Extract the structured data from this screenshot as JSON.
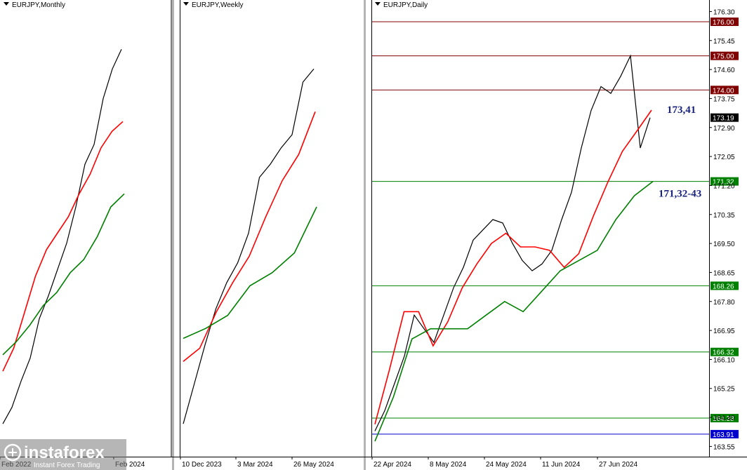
{
  "chart_data": [
    {
      "type": "line",
      "title": "EURJPY,Monthly",
      "xlabel": "",
      "ylabel": "",
      "x_tick_labels": [
        "Feb 2022",
        "Feb 2024"
      ],
      "ylim": [
        163.0,
        176.6
      ],
      "series": [
        {
          "color": "#000000",
          "values": [
            164.0,
            164.5,
            165.3,
            166.0,
            167.2,
            167.9,
            168.7,
            169.5,
            170.6,
            171.9,
            172.5,
            173.9,
            174.8,
            175.4
          ]
        },
        {
          "color": "#ff0000",
          "values": [
            165.6,
            166.3,
            167.4,
            168.5,
            169.3,
            169.8,
            170.3,
            171.0,
            171.6,
            172.4,
            172.9,
            173.2
          ]
        },
        {
          "color": "#008000",
          "values": [
            166.1,
            166.5,
            167.0,
            167.6,
            168.0,
            168.6,
            169.0,
            169.7,
            170.6,
            171.0
          ]
        }
      ]
    },
    {
      "type": "line",
      "title": "EURJPY,Weekly",
      "xlabel": "",
      "ylabel": "",
      "x_tick_labels": [
        "10 Dec 2023",
        "3 Mar 2024",
        "26 May 2024"
      ],
      "ylim": [
        163.0,
        176.6
      ],
      "series": [
        {
          "color": "#000000",
          "values": [
            164.0,
            165.2,
            166.4,
            167.5,
            168.3,
            168.9,
            169.8,
            171.5,
            171.9,
            172.4,
            172.8,
            174.4,
            174.8
          ]
        },
        {
          "color": "#ff0000",
          "values": [
            165.9,
            166.3,
            167.4,
            168.3,
            169.1,
            170.3,
            171.4,
            172.2,
            173.5
          ]
        },
        {
          "color": "#008000",
          "values": [
            166.6,
            166.9,
            167.3,
            168.2,
            168.6,
            169.2,
            170.6
          ]
        }
      ]
    },
    {
      "type": "line",
      "title": "EURJPY,Daily",
      "xlabel": "",
      "ylabel": "",
      "x_tick_labels": [
        "22 Apr 2024",
        "8 May 2024",
        "24 May 2024",
        "11 Jun 2024",
        "27 Jun 2024"
      ],
      "y_tick_labels": [
        "176.30",
        "175.45",
        "174.60",
        "173.75",
        "172.90",
        "172.05",
        "171.20",
        "170.35",
        "169.50",
        "168.65",
        "167.80",
        "166.95",
        "166.10",
        "165.25",
        "164.40",
        "163.55"
      ],
      "ylim": [
        163.25,
        176.35
      ],
      "levels": [
        {
          "label": "176.00",
          "value": 176.0,
          "color": "#800000"
        },
        {
          "label": "175.00",
          "value": 175.0,
          "color": "#800000"
        },
        {
          "label": "174.00",
          "value": 174.0,
          "color": "#800000"
        },
        {
          "label": "171.32",
          "value": 171.32,
          "color": "#008000"
        },
        {
          "label": "168.26",
          "value": 168.26,
          "color": "#008000"
        },
        {
          "label": "166.32",
          "value": 166.32,
          "color": "#008000"
        },
        {
          "label": "164.38",
          "value": 164.38,
          "color": "#008000"
        },
        {
          "label": "163.91",
          "value": 163.91,
          "color": "#0000cc"
        }
      ],
      "current_price": "173.19",
      "annotations": [
        "173,41",
        "171,32-43"
      ],
      "series": [
        {
          "color": "#000000",
          "values": [
            164.0,
            164.6,
            165.4,
            166.2,
            167.4,
            167.0,
            166.6,
            167.4,
            168.2,
            168.8,
            169.6,
            169.9,
            170.2,
            170.1,
            169.5,
            169.0,
            168.7,
            168.9,
            169.3,
            170.2,
            171.0,
            172.3,
            173.4,
            174.1,
            173.9,
            174.4,
            175.0,
            172.3,
            173.19
          ]
        },
        {
          "color": "#ff0000",
          "values": [
            164.2,
            165.8,
            167.5,
            167.5,
            166.5,
            167.2,
            168.2,
            168.9,
            169.5,
            169.8,
            169.4,
            169.4,
            169.3,
            168.8,
            169.2,
            170.3,
            171.3,
            172.2,
            172.8,
            173.41
          ]
        },
        {
          "color": "#008000",
          "values": [
            163.7,
            165.0,
            166.7,
            167.0,
            167.0,
            167.0,
            167.4,
            167.8,
            167.5,
            168.1,
            168.7,
            169.0,
            169.3,
            170.2,
            170.9,
            171.32
          ]
        }
      ]
    }
  ],
  "watermark": {
    "brand": "instaforex",
    "tagline": "Instant Forex Trading"
  }
}
